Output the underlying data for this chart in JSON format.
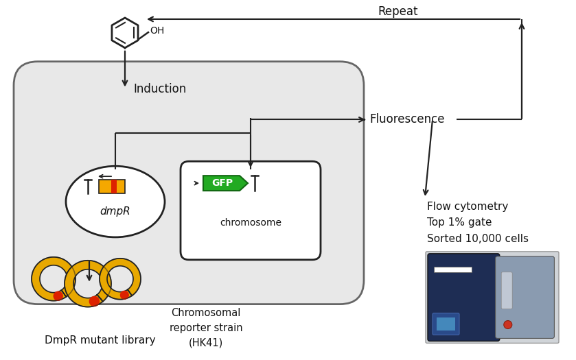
{
  "bg_color": "#ffffff",
  "cell_fill": "#e8e8e8",
  "cell_outline": "#666666",
  "plasmid_fill": "#ffffff",
  "plasmid_outline": "#222222",
  "chromosome_fill": "#ffffff",
  "chromosome_outline": "#222222",
  "gfp_color": "#22aa22",
  "gfp_outline": "#116611",
  "promoter_orange": "#F5A800",
  "promoter_red": "#dd2200",
  "arrow_color": "#222222",
  "text_color": "#111111",
  "ring_color": "#E8A800",
  "ring_outline": "#222222",
  "labels": {
    "induction": "Induction",
    "fluorescence": "Fluorescence",
    "repeat": "Repeat",
    "dmpR": "dmpR",
    "chromosome": "chromosome",
    "gfp": "GFP",
    "chromosomal_reporter": "Chromosomal\nreporter strain\n(HK41)",
    "dmpr_library": "DmpR mutant library",
    "flow_cytometry": "Flow cytometry\nTop 1% gate\nSorted 10,000 cells"
  }
}
